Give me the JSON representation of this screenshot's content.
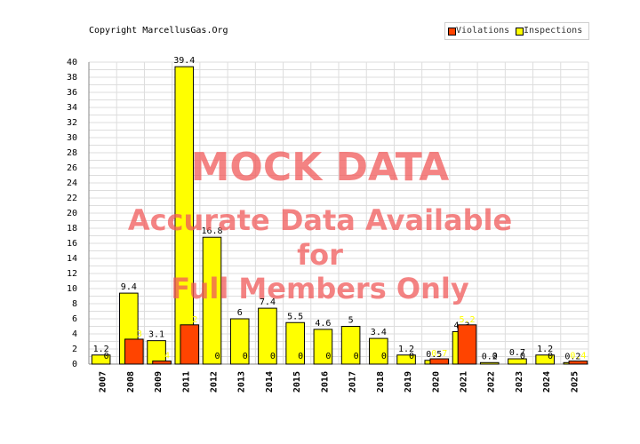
{
  "copyright": "Copyright MarcellusGas.Org",
  "legend": [
    {
      "name": "Violations",
      "color": "#ff4400"
    },
    {
      "name": "Inspections",
      "color": "#ffff00"
    }
  ],
  "watermark": {
    "line1": "MOCK DATA",
    "line2": "Accurate Data Available",
    "line3": "for",
    "line4": "Full Members Only"
  },
  "chart_data": {
    "type": "bar",
    "categories": [
      "2007",
      "2008",
      "2009",
      "2011",
      "2012",
      "2013",
      "2014",
      "2015",
      "2016",
      "2017",
      "2018",
      "2019",
      "2020",
      "2021",
      "2022",
      "2023",
      "2024",
      "2025"
    ],
    "series": [
      {
        "name": "Violations",
        "color": "#ff4400",
        "values": [
          0,
          3.3,
          0.4,
          5.2,
          0,
          0,
          0,
          0,
          0,
          0,
          0,
          0,
          0.7,
          5.2,
          0,
          0,
          0,
          0.4
        ]
      },
      {
        "name": "Inspections",
        "color": "#ffff00",
        "values": [
          1.2,
          9.4,
          3.1,
          39.4,
          16.8,
          6,
          7.4,
          5.5,
          4.6,
          5,
          3.4,
          1.2,
          0.5,
          4.3,
          0.2,
          0.7,
          1.2,
          0.2
        ]
      }
    ],
    "yticks": [
      "0",
      "2",
      "4",
      "6",
      "8",
      "10",
      "12",
      "14",
      "16",
      "18",
      "20",
      "22",
      "24",
      "26",
      "28",
      "30",
      "32",
      "34",
      "36",
      "38",
      "40"
    ],
    "ylim": [
      0,
      40
    ],
    "grid": true,
    "legend_position": "top-right"
  }
}
